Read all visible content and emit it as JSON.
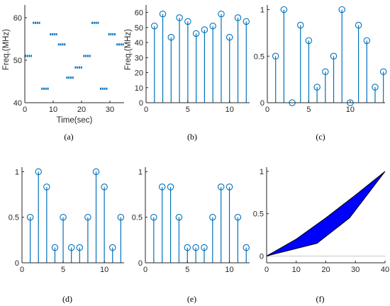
{
  "colors": {
    "stem": "#0072bd",
    "axis": "#262626",
    "fill": "#0000ff",
    "zero_line": "#c8c8c8"
  },
  "chart_data": [
    {
      "panel": "a",
      "caption": "(a)",
      "type": "scatter",
      "marker": "short horizontal dash segments",
      "xlabel": "Time(sec)",
      "ylabel": "Freq.(MHz)",
      "xlim": [
        0,
        35
      ],
      "ylim": [
        40,
        63
      ],
      "xticks": [
        0,
        10,
        20,
        30
      ],
      "yticks": [
        40,
        50,
        60
      ],
      "segments": [
        {
          "x": [
            0,
            2.5
          ],
          "y": 51
        },
        {
          "x": [
            2.8,
            5.6
          ],
          "y": 58.8
        },
        {
          "x": [
            5.8,
            8.6
          ],
          "y": 43.3
        },
        {
          "x": [
            8.8,
            11.4
          ],
          "y": 56.1
        },
        {
          "x": [
            11.7,
            14.4
          ],
          "y": 53.7
        },
        {
          "x": [
            14.6,
            17.4
          ],
          "y": 45.9
        },
        {
          "x": [
            17.6,
            20.3
          ],
          "y": 48.3
        },
        {
          "x": [
            20.6,
            23.3
          ],
          "y": 51
        },
        {
          "x": [
            23.5,
            26.3
          ],
          "y": 58.8
        },
        {
          "x": [
            26.5,
            29.3
          ],
          "y": 43.3
        },
        {
          "x": [
            29.4,
            32.2
          ],
          "y": 56.1
        },
        {
          "x": [
            32.3,
            35
          ],
          "y": 53.7
        }
      ]
    },
    {
      "panel": "b",
      "caption": "(b)",
      "type": "stem",
      "xlabel": "",
      "ylabel": "Freq.(MHz)",
      "xlim": [
        0,
        12.4
      ],
      "ylim": [
        0,
        65
      ],
      "xticks": [
        0,
        5,
        10
      ],
      "yticks": [
        0,
        10,
        20,
        30,
        40,
        50,
        60
      ],
      "x": [
        1,
        2,
        3,
        4,
        5,
        6,
        7,
        8,
        9,
        10,
        11,
        12
      ],
      "values": [
        51,
        59,
        43.5,
        56.5,
        54,
        46,
        48.5,
        51,
        59,
        43.5,
        56.5,
        54
      ]
    },
    {
      "panel": "c",
      "caption": "(c)",
      "type": "stem",
      "xlim": [
        0,
        14.2
      ],
      "ylim": [
        0,
        1.05
      ],
      "xticks": [
        0,
        5,
        10
      ],
      "yticks": [
        0,
        0.5,
        1
      ],
      "x": [
        1,
        2,
        3,
        4,
        5,
        6,
        7,
        8,
        9,
        10,
        11,
        12,
        13,
        14
      ],
      "values": [
        0.5,
        1,
        0,
        0.833,
        0.667,
        0.167,
        0.333,
        0.5,
        1,
        0,
        0.833,
        0.667,
        0.167,
        0.333
      ]
    },
    {
      "panel": "d",
      "caption": "(d)",
      "type": "stem",
      "xlim": [
        0,
        12.4
      ],
      "ylim": [
        0,
        1.05
      ],
      "xticks": [
        0,
        5,
        10
      ],
      "yticks": [
        0,
        0.5,
        1
      ],
      "x": [
        1,
        2,
        3,
        4,
        5,
        6,
        7,
        8,
        9,
        10,
        11,
        12
      ],
      "values": [
        0.5,
        1,
        0.833,
        0.167,
        0.5,
        0.167,
        0.167,
        0.5,
        1,
        0.833,
        0.167,
        0.5
      ]
    },
    {
      "panel": "e",
      "caption": "(e)",
      "type": "stem",
      "xlim": [
        0,
        12.4
      ],
      "ylim": [
        0,
        1.05
      ],
      "xticks": [
        0,
        5,
        10
      ],
      "yticks": [
        0,
        0.5,
        1
      ],
      "x": [
        1,
        2,
        3,
        4,
        5,
        6,
        7,
        8,
        9,
        10,
        11,
        12
      ],
      "values": [
        0.5,
        0.833,
        0.833,
        0.5,
        0.167,
        0.167,
        0.167,
        0.5,
        0.833,
        0.833,
        0.5,
        0.167
      ]
    },
    {
      "panel": "f",
      "caption": "(f)",
      "type": "area",
      "xlim": [
        0,
        40
      ],
      "ylim": [
        -0.08,
        1.05
      ],
      "xticks": [
        0,
        10,
        20,
        30,
        40
      ],
      "yticks": [
        0,
        0.5,
        1
      ],
      "zero_line": true,
      "upper": {
        "x": [
          0,
          3,
          10,
          20,
          30,
          40
        ],
        "y": [
          0,
          0.06,
          0.2,
          0.45,
          0.72,
          1
        ]
      },
      "lower": {
        "x": [
          0,
          17,
          28,
          40
        ],
        "y": [
          0,
          0.15,
          0.45,
          1
        ]
      }
    }
  ]
}
